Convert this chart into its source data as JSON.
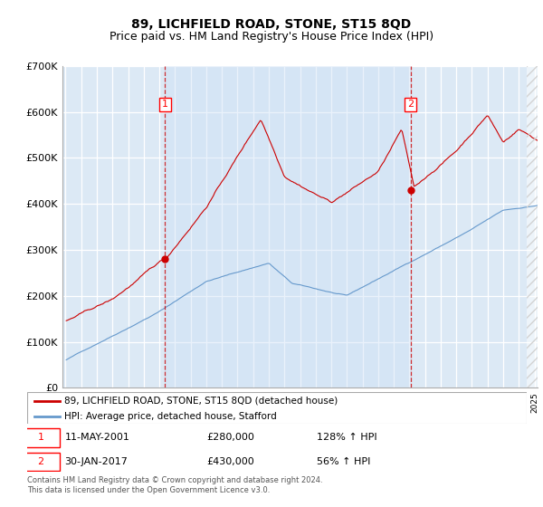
{
  "title": "89, LICHFIELD ROAD, STONE, ST15 8QD",
  "subtitle": "Price paid vs. HM Land Registry's House Price Index (HPI)",
  "title_fontsize": 10,
  "subtitle_fontsize": 9,
  "bg_color": "#dce9f5",
  "legend_label_red": "89, LICHFIELD ROAD, STONE, ST15 8QD (detached house)",
  "legend_label_blue": "HPI: Average price, detached house, Stafford",
  "sale1_date": "11-MAY-2001",
  "sale1_price": "£280,000",
  "sale1_hpi": "128% ↑ HPI",
  "sale2_date": "30-JAN-2017",
  "sale2_price": "£430,000",
  "sale2_hpi": "56% ↑ HPI",
  "footer": "Contains HM Land Registry data © Crown copyright and database right 2024.\nThis data is licensed under the Open Government Licence v3.0.",
  "ylim": [
    0,
    700000
  ],
  "ytick_labels": [
    "£0",
    "£100K",
    "£200K",
    "£300K",
    "£400K",
    "£500K",
    "£600K",
    "£700K"
  ],
  "sale1_x": 2001.37,
  "sale1_y": 280000,
  "sale2_x": 2017.08,
  "sale2_y": 430000,
  "red_color": "#cc0000",
  "blue_color": "#6699cc",
  "xmin": 1994.8,
  "xmax": 2025.2
}
